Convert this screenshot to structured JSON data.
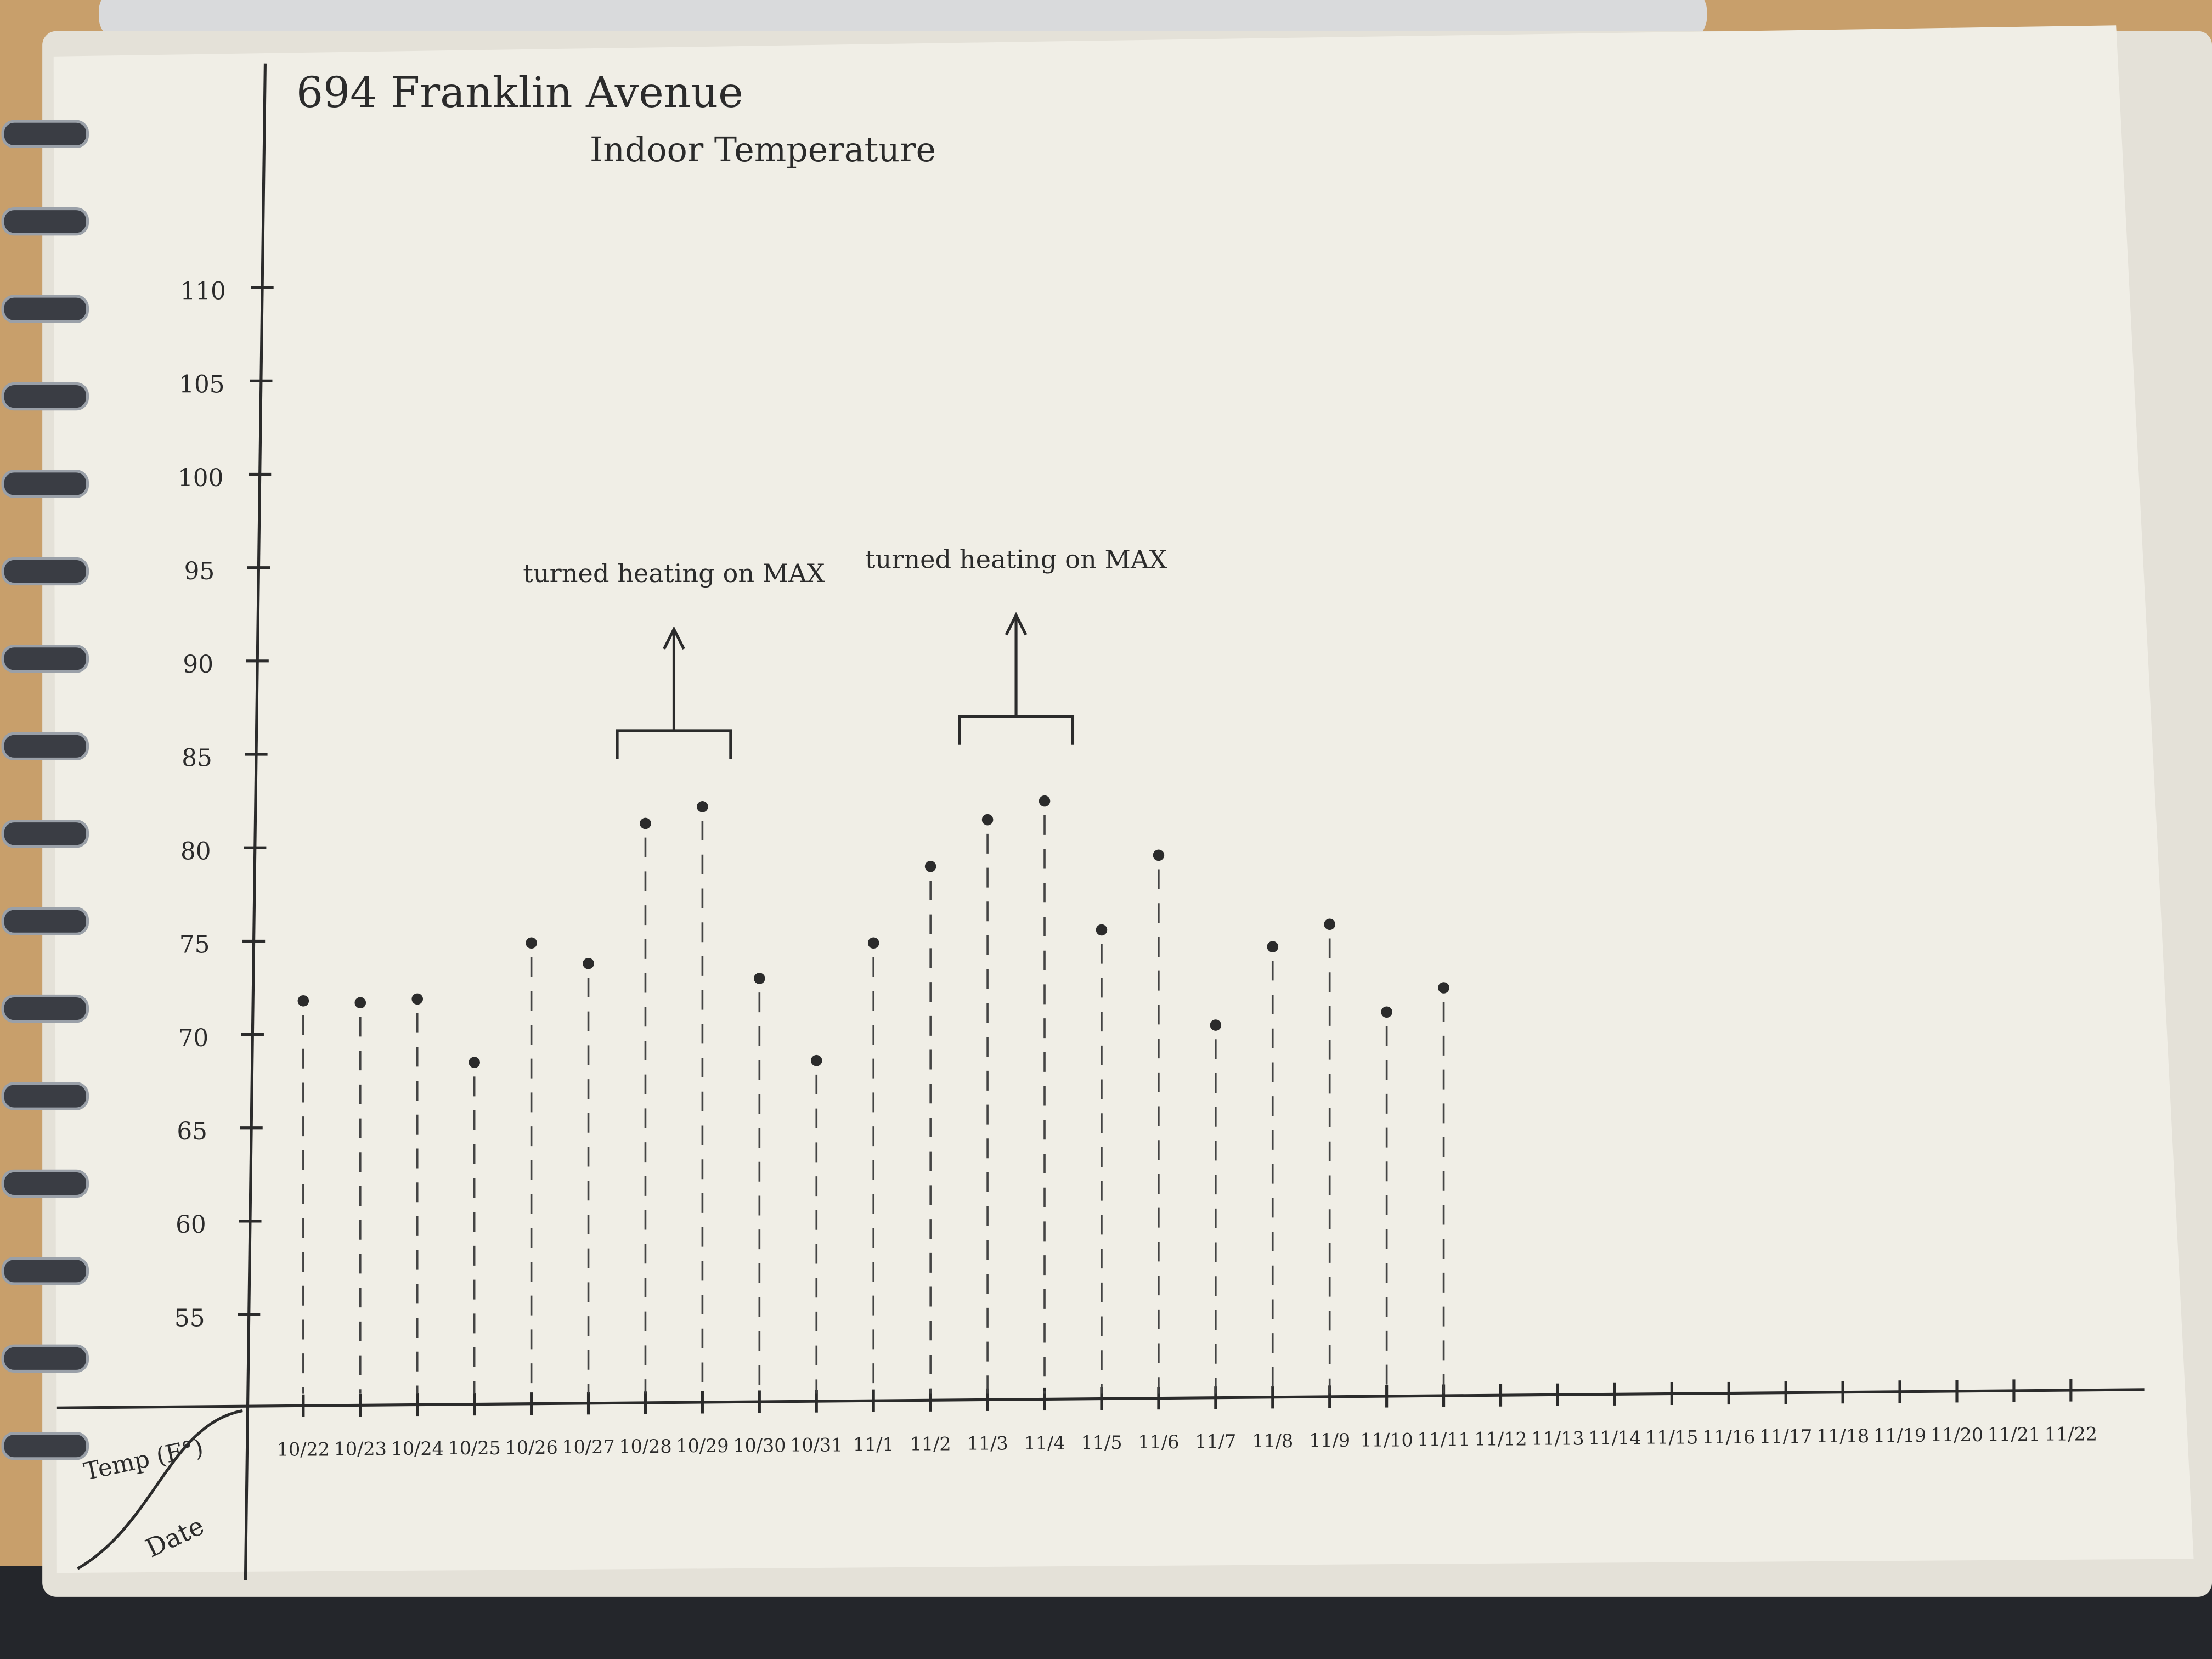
{
  "chart_data": {
    "type": "scatter",
    "title": "694 Franklin Avenue",
    "subtitle": "Indoor Temperature",
    "y_label": "Temp (F°)",
    "x_label": "Date",
    "categories": [
      "10/22",
      "10/23",
      "10/24",
      "10/25",
      "10/26",
      "10/27",
      "10/28",
      "10/29",
      "10/30",
      "10/31",
      "11/1",
      "11/2",
      "11/3",
      "11/4",
      "11/5",
      "11/6",
      "11/7",
      "11/8",
      "11/9",
      "11/10",
      "11/11",
      "11/12",
      "11/13",
      "11/14",
      "11/15",
      "11/16",
      "11/17",
      "11/18",
      "11/19",
      "11/20",
      "11/21",
      "11/22"
    ],
    "values": [
      71.8,
      71.7,
      71.9,
      68.5,
      74.9,
      73.8,
      81.3,
      82.2,
      73.0,
      68.6,
      74.9,
      79.0,
      81.5,
      82.5,
      75.6,
      79.6,
      70.5,
      74.7,
      75.9,
      71.2,
      72.5,
      null,
      null,
      null,
      null,
      null,
      null,
      null,
      null,
      null,
      null,
      null
    ],
    "color": "#2b2b2b",
    "ylim": [
      50,
      122
    ],
    "yticks": [
      55,
      60,
      65,
      70,
      75,
      80,
      85,
      90,
      95,
      100,
      105,
      110
    ],
    "annotations": [
      "turned heating on MAX",
      "turned heating on MAX"
    ],
    "stems": true
  }
}
